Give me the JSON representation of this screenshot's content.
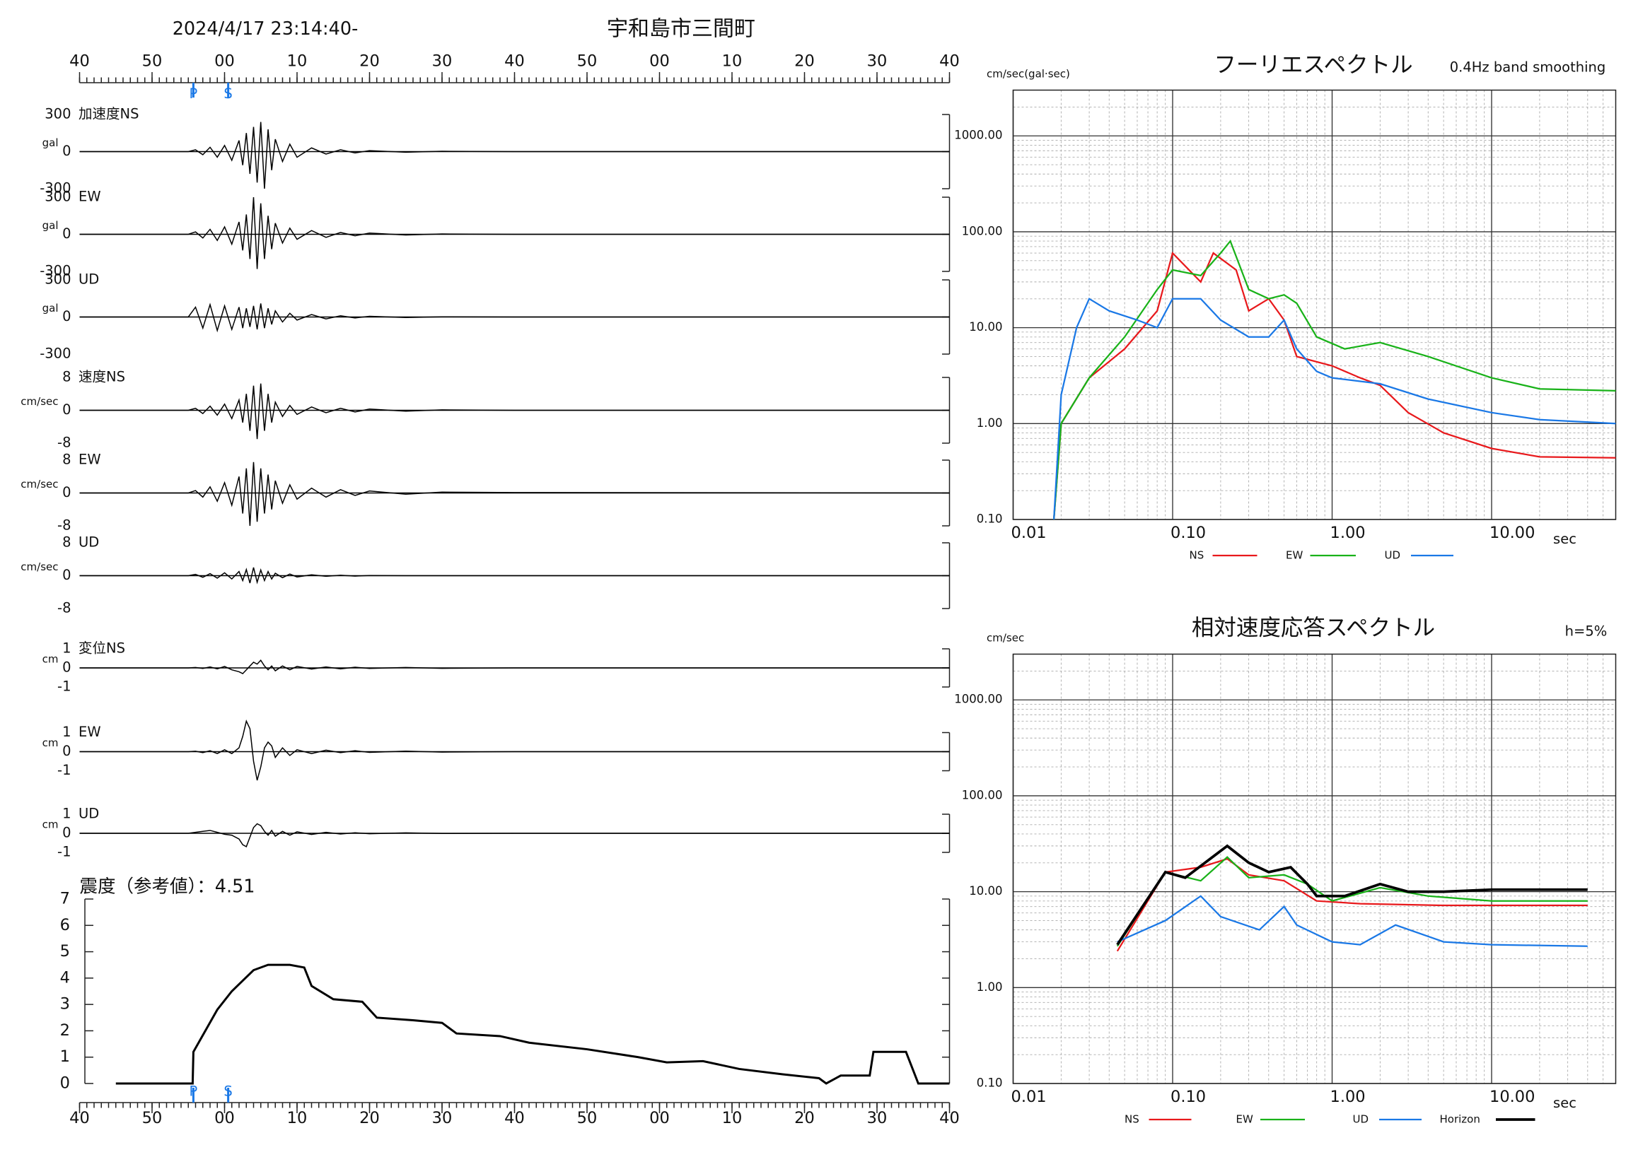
{
  "chart_data": [
    {
      "type": "waveform",
      "date": "2024/4/17 23:14:40-",
      "title": "宇和島市三間町",
      "xlim": [
        0,
        120
      ],
      "xticks": [
        {
          "value": 0,
          "label": "40"
        },
        {
          "value": 10,
          "label": "50"
        },
        {
          "value": 20,
          "label": "00"
        },
        {
          "value": 30,
          "label": "10"
        },
        {
          "value": 40,
          "label": "20"
        },
        {
          "value": 50,
          "label": "30"
        },
        {
          "value": 60,
          "label": "40"
        },
        {
          "value": 70,
          "label": "50"
        },
        {
          "value": 80,
          "label": "00"
        },
        {
          "value": 90,
          "label": "10"
        },
        {
          "value": 100,
          "label": "20"
        },
        {
          "value": 110,
          "label": "30"
        },
        {
          "value": 120,
          "label": "40"
        }
      ],
      "markers": [
        {
          "label": "P",
          "x": 15.7
        },
        {
          "label": "S",
          "x": 20.5
        }
      ],
      "x": [
        0,
        15,
        16,
        17,
        18,
        19,
        20,
        21,
        22,
        22.5,
        23,
        23.5,
        24,
        24.5,
        25,
        25.5,
        26,
        26.5,
        27,
        28,
        29,
        30,
        32,
        34,
        36,
        38,
        40,
        45,
        50,
        60,
        120
      ],
      "series": [
        {
          "name": "加速度NS",
          "unit": "gal",
          "ylim": [
            -300,
            300
          ],
          "yticks": [
            -300,
            0,
            300
          ],
          "color": "#000000",
          "values": [
            0,
            0,
            15,
            -25,
            35,
            -45,
            50,
            -70,
            90,
            -110,
            150,
            -180,
            200,
            -250,
            240,
            -300,
            180,
            -150,
            100,
            -80,
            60,
            -45,
            30,
            -20,
            15,
            -10,
            8,
            -5,
            3,
            0,
            0
          ]
        },
        {
          "name": "EW",
          "unit": "gal",
          "ylim": [
            -300,
            300
          ],
          "yticks": [
            -300,
            0,
            300
          ],
          "color": "#000000",
          "values": [
            0,
            0,
            20,
            -30,
            40,
            -50,
            60,
            -80,
            100,
            -130,
            160,
            -200,
            300,
            -280,
            250,
            -200,
            150,
            -120,
            90,
            -70,
            50,
            -40,
            30,
            -25,
            15,
            -12,
            10,
            -6,
            3,
            0,
            0
          ]
        },
        {
          "name": "UD",
          "unit": "gal",
          "ylim": [
            -300,
            300
          ],
          "yticks": [
            -300,
            0,
            300
          ],
          "color": "#000000",
          "values": [
            0,
            0,
            80,
            -90,
            100,
            -110,
            90,
            -100,
            80,
            -90,
            70,
            -80,
            90,
            -100,
            110,
            -90,
            70,
            -60,
            50,
            -40,
            30,
            -25,
            20,
            -15,
            10,
            -8,
            6,
            -4,
            2,
            0,
            0
          ]
        },
        {
          "name": "速度NS",
          "unit": "cm/sec",
          "ylim": [
            -8,
            8
          ],
          "yticks": [
            -8,
            0,
            8
          ],
          "color": "#000000",
          "values": [
            0,
            0,
            0.5,
            -0.8,
            1,
            -1.2,
            1.5,
            -2,
            2.5,
            -3,
            4,
            -5,
            6,
            -7,
            6.5,
            -5,
            4,
            -3,
            2,
            -1.5,
            1.2,
            -1,
            0.8,
            -0.6,
            0.5,
            -0.4,
            0.3,
            -0.2,
            0.1,
            0,
            0
          ]
        },
        {
          "name": "EW",
          "unit": "cm/sec",
          "ylim": [
            -8,
            8
          ],
          "yticks": [
            -8,
            0,
            8
          ],
          "color": "#000000",
          "values": [
            0,
            0,
            0.6,
            -1,
            1.5,
            -2,
            2.5,
            -3,
            4,
            -5,
            6,
            -8,
            7.5,
            -7,
            6,
            -5,
            4.5,
            -4,
            3,
            -2.5,
            2,
            -1.5,
            1.2,
            -1,
            0.8,
            -0.6,
            0.5,
            -0.3,
            0.2,
            0.1,
            0
          ]
        },
        {
          "name": "UD",
          "unit": "cm/sec",
          "ylim": [
            -8,
            8
          ],
          "yticks": [
            -8,
            0,
            8
          ],
          "color": "#000000",
          "values": [
            0,
            0,
            0.3,
            -0.4,
            0.5,
            -0.6,
            0.7,
            -0.8,
            1,
            -1.2,
            1.5,
            -1.8,
            2,
            -1.6,
            1.4,
            -1.2,
            1,
            -0.8,
            0.6,
            -0.5,
            0.4,
            -0.3,
            0.2,
            -0.15,
            0.1,
            -0.1,
            0.05,
            0,
            0,
            0,
            0
          ]
        },
        {
          "name": "変位NS",
          "unit": "cm",
          "ylim": [
            -1,
            1
          ],
          "yticks": [
            -1,
            0,
            1
          ],
          "color": "#000000",
          "values": [
            0,
            0,
            0.02,
            -0.03,
            0.05,
            -0.05,
            0.08,
            -0.1,
            -0.2,
            -0.3,
            -0.1,
            0.1,
            0.3,
            0.2,
            0.4,
            0.1,
            -0.1,
            0.1,
            -0.15,
            0.1,
            -0.1,
            0.08,
            -0.06,
            0.05,
            -0.05,
            0.04,
            -0.03,
            0.02,
            -0.02,
            0,
            0
          ]
        },
        {
          "name": "EW",
          "unit": "cm",
          "ylim": [
            -1,
            1
          ],
          "yticks": [
            -1,
            0,
            1
          ],
          "color": "#000000",
          "values": [
            0,
            0,
            0.02,
            -0.05,
            0.05,
            -0.1,
            0.1,
            -0.1,
            0.2,
            0.8,
            1.6,
            1.2,
            -0.5,
            -1.5,
            -0.8,
            0.2,
            0.5,
            0.3,
            -0.3,
            0.2,
            -0.2,
            0.1,
            -0.1,
            0.08,
            -0.05,
            0.05,
            -0.04,
            0.03,
            -0.02,
            0,
            0
          ]
        },
        {
          "name": "UD",
          "unit": "cm",
          "ylim": [
            -1,
            1
          ],
          "yticks": [
            -1,
            0,
            1
          ],
          "color": "#000000",
          "values": [
            0,
            0,
            0.05,
            0.1,
            0.15,
            0.05,
            -0.05,
            -0.1,
            -0.3,
            -0.6,
            -0.7,
            -0.2,
            0.3,
            0.5,
            0.4,
            0.1,
            -0.1,
            0.15,
            -0.15,
            0.1,
            -0.1,
            0.08,
            -0.06,
            0.05,
            -0.04,
            0.03,
            -0.02,
            0.02,
            -0.01,
            0,
            0
          ]
        }
      ]
    },
    {
      "type": "line",
      "title": "震度（参考値）：4.51",
      "color": "#000000",
      "xlim": [
        0,
        120
      ],
      "xticks": [
        {
          "value": 0,
          "label": "40"
        },
        {
          "value": 10,
          "label": "50"
        },
        {
          "value": 20,
          "label": "00"
        },
        {
          "value": 30,
          "label": "10"
        },
        {
          "value": 40,
          "label": "20"
        },
        {
          "value": 50,
          "label": "30"
        },
        {
          "value": 60,
          "label": "40"
        },
        {
          "value": 70,
          "label": "50"
        },
        {
          "value": 80,
          "label": "00"
        },
        {
          "value": 90,
          "label": "10"
        },
        {
          "value": 100,
          "label": "20"
        },
        {
          "value": 110,
          "label": "30"
        },
        {
          "value": 120,
          "label": "40"
        }
      ],
      "ylim": [
        0,
        7
      ],
      "yticks": [
        0,
        1,
        2,
        3,
        4,
        5,
        6,
        7
      ],
      "markers": [
        {
          "label": "P",
          "x": 15.7
        },
        {
          "label": "S",
          "x": 20.5
        }
      ],
      "x": [
        5,
        15.6,
        15.7,
        19,
        21,
        24,
        26,
        29,
        31,
        32,
        35,
        39,
        41,
        46,
        50,
        52,
        58,
        62,
        70,
        77,
        81,
        86,
        91,
        97,
        102,
        103,
        105,
        109,
        109.5,
        114,
        115.7,
        120
      ],
      "values": [
        0,
        0,
        1.2,
        2.8,
        3.5,
        4.3,
        4.5,
        4.5,
        4.4,
        3.7,
        3.2,
        3.1,
        2.5,
        2.4,
        2.3,
        1.9,
        1.8,
        1.55,
        1.3,
        1.0,
        0.8,
        0.85,
        0.55,
        0.35,
        0.2,
        0,
        0.3,
        0.3,
        1.2,
        1.2,
        0,
        0
      ]
    },
    {
      "type": "line",
      "title": "フーリエスペクトル",
      "subtitle": "0.4Hz band smoothing",
      "y_label": "cm/sec(gal·sec)",
      "x_label": "sec",
      "xlog": true,
      "ylog": true,
      "grid": true,
      "xlim": [
        0.01,
        60
      ],
      "xticks": [
        {
          "value": 0.01,
          "label": "0.01"
        },
        {
          "value": 0.1,
          "label": "0.10"
        },
        {
          "value": 1,
          "label": "1.00"
        },
        {
          "value": 10,
          "label": "10.00"
        }
      ],
      "ylim": [
        0.1,
        3000
      ],
      "yticks": [
        {
          "value": 0.1,
          "label": "0.10"
        },
        {
          "value": 1,
          "label": "1.00"
        },
        {
          "value": 10,
          "label": "10.00"
        },
        {
          "value": 100,
          "label": "100.00"
        },
        {
          "value": 1000,
          "label": "1000.00"
        }
      ],
      "series": [
        {
          "name": "NS",
          "color": "#e8191c",
          "x": [
            0.018,
            0.02,
            0.03,
            0.05,
            0.08,
            0.1,
            0.15,
            0.18,
            0.25,
            0.3,
            0.4,
            0.5,
            0.6,
            1,
            1.5,
            2,
            3,
            5,
            10,
            20,
            60
          ],
          "values": [
            0.1,
            1,
            3,
            6,
            15,
            60,
            30,
            60,
            40,
            15,
            20,
            12,
            5,
            4,
            3,
            2.5,
            1.3,
            0.8,
            0.55,
            0.45,
            0.44
          ]
        },
        {
          "name": "EW",
          "color": "#19b219",
          "x": [
            0.018,
            0.02,
            0.03,
            0.05,
            0.08,
            0.1,
            0.15,
            0.2,
            0.23,
            0.3,
            0.4,
            0.5,
            0.6,
            0.8,
            1.2,
            2,
            4,
            10,
            20,
            60
          ],
          "values": [
            0.1,
            1,
            3,
            8,
            25,
            40,
            35,
            60,
            80,
            25,
            20,
            22,
            18,
            8,
            6,
            7,
            5,
            3,
            2.3,
            2.2
          ]
        },
        {
          "name": "UD",
          "color": "#1a78e6",
          "x": [
            0.018,
            0.02,
            0.025,
            0.03,
            0.04,
            0.06,
            0.08,
            0.1,
            0.15,
            0.2,
            0.3,
            0.4,
            0.5,
            0.6,
            0.8,
            1,
            2,
            4,
            10,
            20,
            60
          ],
          "values": [
            0.1,
            2,
            10,
            20,
            15,
            12,
            10,
            20,
            20,
            12,
            8,
            8,
            12,
            6,
            3.5,
            3,
            2.6,
            1.8,
            1.3,
            1.1,
            1.0
          ]
        }
      ]
    },
    {
      "type": "line",
      "title": "相対速度応答スペクトル",
      "subtitle": "h=5%",
      "y_label": "cm/sec",
      "x_label": "sec",
      "xlog": true,
      "ylog": true,
      "grid": true,
      "xlim": [
        0.01,
        60
      ],
      "xticks": [
        {
          "value": 0.01,
          "label": "0.01"
        },
        {
          "value": 0.1,
          "label": "0.10"
        },
        {
          "value": 1,
          "label": "1.00"
        },
        {
          "value": 10,
          "label": "10.00"
        }
      ],
      "ylim": [
        0.1,
        3000
      ],
      "yticks": [
        {
          "value": 0.1,
          "label": "0.10"
        },
        {
          "value": 1,
          "label": "1.00"
        },
        {
          "value": 10,
          "label": "10.00"
        },
        {
          "value": 100,
          "label": "100.00"
        },
        {
          "value": 1000,
          "label": "1000.00"
        }
      ],
      "series": [
        {
          "name": "NS",
          "color": "#e8191c",
          "x": [
            0.045,
            0.09,
            0.15,
            0.22,
            0.3,
            0.5,
            0.8,
            1.5,
            5,
            40
          ],
          "values": [
            2.4,
            16,
            18,
            22,
            15,
            13,
            8,
            7.5,
            7.2,
            7.2
          ]
        },
        {
          "name": "EW",
          "color": "#19b219",
          "x": [
            0.045,
            0.09,
            0.15,
            0.22,
            0.3,
            0.5,
            0.7,
            1,
            2,
            4,
            10,
            40
          ],
          "values": [
            2.7,
            16,
            13,
            23,
            14,
            15,
            12,
            8,
            11,
            9,
            8,
            8
          ]
        },
        {
          "name": "UD",
          "color": "#1a78e6",
          "x": [
            0.045,
            0.09,
            0.15,
            0.2,
            0.35,
            0.5,
            0.6,
            1,
            1.5,
            2.5,
            5,
            10,
            40
          ],
          "values": [
            3,
            5,
            9,
            5.5,
            4,
            7,
            4.5,
            3,
            2.8,
            4.5,
            3,
            2.8,
            2.7
          ]
        },
        {
          "name": "Horizon",
          "color": "#000000",
          "x": [
            0.045,
            0.09,
            0.12,
            0.22,
            0.3,
            0.4,
            0.55,
            0.7,
            0.8,
            1.2,
            2,
            3,
            5,
            10,
            40
          ],
          "values": [
            2.8,
            16,
            14,
            30,
            20,
            16,
            18,
            12,
            9,
            9,
            12,
            10,
            10,
            10.5,
            10.5
          ]
        }
      ]
    }
  ]
}
